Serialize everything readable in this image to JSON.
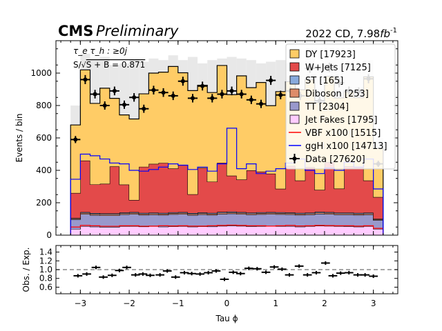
{
  "header": {
    "experiment": "CMS",
    "status": "Preliminary",
    "lumi_prefix": "2022 CD, 7.98",
    "lumi_unit": "fb",
    "lumi_exp": "-1"
  },
  "annotations": {
    "channel": "τ_e τ_h : ≥0j",
    "significance_prefix": "S/",
    "significance_value": "S + B  = 0.871"
  },
  "chart_data": [
    {
      "type": "area",
      "xlabel": "Tau ϕ",
      "ylabel": "Events / bin",
      "xlim": [
        -3.5,
        3.5
      ],
      "ylim": [
        0,
        1200
      ],
      "xticks": [
        -3,
        -2,
        -1,
        0,
        1,
        2,
        3
      ],
      "xtick_labels": [
        "−3",
        "−2",
        "−1",
        "0",
        "1",
        "2",
        "3"
      ],
      "yticks": [
        0,
        200,
        400,
        600,
        800,
        1000
      ],
      "ytick_labels": [
        "0",
        "200",
        "400",
        "600",
        "800",
        "1000"
      ],
      "bin_edges": [
        -3.2,
        -3.0,
        -2.8,
        -2.6,
        -2.4,
        -2.2,
        -2.0,
        -1.8,
        -1.6,
        -1.4,
        -1.2,
        -1.0,
        -0.8,
        -0.6,
        -0.4,
        -0.2,
        0.0,
        0.2,
        0.4,
        0.6,
        0.8,
        1.0,
        1.2,
        1.4,
        1.6,
        1.8,
        2.0,
        2.2,
        2.4,
        2.6,
        2.8,
        3.0,
        3.2
      ],
      "stack_order_bottom_to_top": [
        "Jet Fakes [1795]",
        "TT [2304]",
        "Diboson [253]",
        "ST [165]",
        "W+Jets [7125]",
        "DY [17923]"
      ],
      "series": [
        {
          "name": "Jet Fakes [1795]",
          "color": "#ffccff",
          "values": [
            38,
            55,
            52,
            50,
            50,
            55,
            56,
            53,
            55,
            52,
            54,
            56,
            52,
            54,
            53,
            57,
            58,
            57,
            54,
            55,
            57,
            55,
            56,
            52,
            55,
            58,
            57,
            55,
            54,
            52,
            55,
            38
          ]
        },
        {
          "name": "TT [2304]",
          "color": "#9999cc",
          "values": [
            60,
            75,
            72,
            72,
            72,
            73,
            74,
            72,
            72,
            73,
            75,
            74,
            72,
            74,
            72,
            74,
            75,
            73,
            73,
            74,
            73,
            74,
            72,
            73,
            72,
            74,
            73,
            72,
            73,
            73,
            72,
            55
          ]
        },
        {
          "name": "Diboson [253]",
          "color": "#de8c6a",
          "values": [
            5,
            7,
            7,
            7,
            7,
            7,
            7,
            7,
            7,
            7,
            7,
            7,
            7,
            7,
            7,
            7,
            7,
            7,
            7,
            7,
            7,
            7,
            7,
            7,
            7,
            7,
            7,
            7,
            7,
            7,
            7,
            5
          ]
        },
        {
          "name": "ST [165]",
          "color": "#88aadd",
          "values": [
            3,
            5,
            5,
            5,
            5,
            5,
            5,
            5,
            5,
            5,
            5,
            5,
            5,
            5,
            5,
            5,
            5,
            5,
            5,
            5,
            5,
            5,
            5,
            5,
            5,
            5,
            5,
            5,
            5,
            5,
            5,
            3
          ]
        },
        {
          "name": "W+Jets [7125]",
          "color": "#e34a4a",
          "values": [
            154,
            318,
            177,
            183,
            290,
            172,
            75,
            285,
            301,
            309,
            270,
            290,
            116,
            275,
            193,
            304,
            222,
            201,
            261,
            251,
            237,
            145,
            287,
            200,
            280,
            135,
            308,
            148,
            285,
            282,
            198,
            134
          ]
        },
        {
          "name": "DY [17923]",
          "color": "#ffcc66",
          "values": [
            420,
            560,
            500,
            590,
            420,
            430,
            500,
            450,
            560,
            560,
            630,
            570,
            640,
            510,
            550,
            600,
            500,
            640,
            510,
            550,
            420,
            600,
            520,
            560,
            540,
            540,
            530,
            560,
            460,
            430,
            640,
            300
          ]
        }
      ],
      "signal_series": [
        {
          "name": "VBF x100 [1515]",
          "color": "#ff0000",
          "values": [
            50,
            60,
            58,
            55,
            55,
            58,
            58,
            55,
            56,
            58,
            57,
            58,
            56,
            56,
            58,
            60,
            62,
            60,
            58,
            58,
            56,
            58,
            60,
            57,
            58,
            60,
            59,
            58,
            58,
            56,
            58,
            42
          ]
        },
        {
          "name": "ggH x100 [14713]",
          "color": "#0000ff",
          "values": [
            345,
            500,
            490,
            470,
            445,
            440,
            400,
            395,
            405,
            420,
            440,
            432,
            405,
            420,
            395,
            440,
            660,
            410,
            440,
            380,
            395,
            410,
            445,
            470,
            400,
            380,
            415,
            400,
            450,
            420,
            470,
            285
          ]
        }
      ],
      "uncertainty_top": [
        800,
        1120,
        1080,
        1100,
        1050,
        1060,
        1080,
        1070,
        1090,
        1080,
        1110,
        1080,
        1100,
        1060,
        1080,
        1090,
        1100,
        1090,
        1080,
        1060,
        1070,
        1080,
        1060,
        1080,
        1090,
        1060,
        1080,
        1090,
        1060,
        1050,
        1080,
        600
      ],
      "data": {
        "name": "Data [27620]",
        "x": [
          -3.1,
          -2.9,
          -2.7,
          -2.5,
          -2.3,
          -2.1,
          -1.9,
          -1.7,
          -1.5,
          -1.3,
          -1.1,
          -0.9,
          -0.7,
          -0.5,
          -0.3,
          -0.1,
          0.1,
          0.3,
          0.5,
          0.7,
          0.9,
          1.1,
          1.3,
          1.5,
          1.7,
          1.9,
          2.1,
          2.3,
          2.5,
          2.7,
          2.9,
          3.1
        ],
        "y": [
          590,
          960,
          870,
          800,
          890,
          805,
          850,
          780,
          895,
          880,
          860,
          950,
          845,
          920,
          845,
          870,
          890,
          870,
          835,
          810,
          955,
          865,
          890,
          860,
          1030,
          830,
          1035,
          940,
          890,
          885,
          965,
          440
        ]
      },
      "legend": "top-right"
    },
    {
      "type": "scatter",
      "xlabel": "Tau ϕ",
      "ylabel": "Obs. / Exp.",
      "xlim": [
        -3.5,
        3.5
      ],
      "ylim": [
        0.45,
        1.55
      ],
      "reference_line": 1.0,
      "ytick_labels": [
        "0.6",
        "0.8",
        "1.0",
        "1.2",
        "1.4"
      ],
      "x": [
        -3.05,
        -2.87,
        -2.68,
        -2.53,
        -2.35,
        -2.2,
        -2.05,
        -1.87,
        -1.72,
        -1.57,
        -1.37,
        -1.22,
        -1.05,
        -0.87,
        -0.72,
        -0.55,
        -0.38,
        -0.22,
        -0.05,
        0.13,
        0.28,
        0.45,
        0.62,
        0.8,
        0.97,
        1.13,
        1.28,
        1.48,
        1.65,
        1.83,
        2.02,
        2.17,
        2.33,
        2.5,
        2.68,
        2.83,
        3.0
      ],
      "y": [
        0.86,
        0.9,
        1.05,
        0.83,
        0.87,
        0.98,
        1.05,
        0.88,
        0.9,
        0.87,
        0.88,
        0.97,
        0.83,
        0.93,
        0.91,
        0.9,
        0.93,
        0.97,
        0.78,
        0.94,
        0.91,
        1.03,
        1.02,
        0.94,
        1.06,
        1.01,
        0.88,
        1.08,
        0.88,
        0.93,
        1.15,
        0.86,
        0.92,
        0.93,
        0.88,
        0.88,
        0.85
      ]
    }
  ]
}
